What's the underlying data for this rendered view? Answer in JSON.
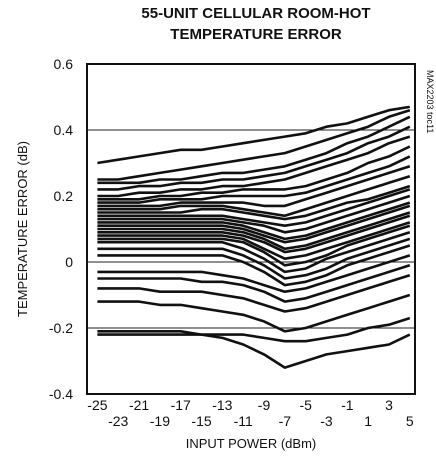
{
  "chart_data": {
    "type": "line",
    "title_line1": "55-UNIT CELLULAR ROOM-HOT",
    "title_line2": "TEMPERATURE ERROR",
    "xlabel": "INPUT POWER (dBm)",
    "ylabel": "TEMPERATURE ERROR (dB)",
    "part_label": "MAX2203 toc11",
    "xlim": [
      -26,
      5.5
    ],
    "ylim": [
      -0.4,
      0.6
    ],
    "y_ticks": [
      "0.6",
      "0.4",
      "0.2",
      "0",
      "-0.2",
      "-0.4"
    ],
    "y_tick_values": [
      0.6,
      0.4,
      0.2,
      0,
      -0.2,
      -0.4
    ],
    "x_ticks_upper": [
      "-25",
      "-21",
      "-17",
      "-13",
      "-9",
      "-5",
      "-1",
      "3"
    ],
    "x_ticks_upper_values": [
      -25,
      -21,
      -17,
      -13,
      -9,
      -5,
      -1,
      3
    ],
    "x_ticks_lower": [
      "-23",
      "-19",
      "-15",
      "-11",
      "-7",
      "-3",
      "1",
      "5"
    ],
    "x_ticks_lower_values": [
      -23,
      -19,
      -15,
      -11,
      -7,
      -3,
      1,
      5
    ],
    "gridlines_y": [
      0.4,
      0,
      -0.2
    ],
    "x": [
      -25,
      -23,
      -21,
      -19,
      -17,
      -15,
      -13,
      -11,
      -9,
      -7,
      -5,
      -3,
      -1,
      1,
      3,
      5
    ],
    "series": [
      {
        "values": [
          0.3,
          0.31,
          0.32,
          0.33,
          0.34,
          0.34,
          0.35,
          0.36,
          0.37,
          0.38,
          0.39,
          0.41,
          0.42,
          0.44,
          0.46,
          0.47
        ]
      },
      {
        "values": [
          0.25,
          0.25,
          0.26,
          0.27,
          0.28,
          0.29,
          0.3,
          0.31,
          0.32,
          0.33,
          0.35,
          0.37,
          0.39,
          0.41,
          0.44,
          0.46
        ]
      },
      {
        "values": [
          0.24,
          0.24,
          0.24,
          0.25,
          0.25,
          0.26,
          0.27,
          0.27,
          0.28,
          0.29,
          0.31,
          0.33,
          0.36,
          0.38,
          0.41,
          0.44
        ]
      },
      {
        "values": [
          0.22,
          0.22,
          0.23,
          0.23,
          0.24,
          0.24,
          0.25,
          0.25,
          0.26,
          0.27,
          0.29,
          0.31,
          0.33,
          0.36,
          0.38,
          0.41
        ]
      },
      {
        "values": [
          0.2,
          0.2,
          0.21,
          0.21,
          0.22,
          0.22,
          0.23,
          0.23,
          0.24,
          0.25,
          0.27,
          0.29,
          0.31,
          0.33,
          0.36,
          0.38
        ]
      },
      {
        "values": [
          0.19,
          0.19,
          0.19,
          0.2,
          0.2,
          0.21,
          0.21,
          0.22,
          0.22,
          0.22,
          0.23,
          0.25,
          0.27,
          0.3,
          0.32,
          0.35
        ]
      },
      {
        "values": [
          0.18,
          0.18,
          0.18,
          0.19,
          0.19,
          0.19,
          0.2,
          0.2,
          0.2,
          0.2,
          0.21,
          0.23,
          0.25,
          0.27,
          0.29,
          0.32
        ]
      },
      {
        "values": [
          0.17,
          0.17,
          0.17,
          0.17,
          0.18,
          0.18,
          0.18,
          0.18,
          0.17,
          0.17,
          0.19,
          0.21,
          0.23,
          0.25,
          0.27,
          0.29
        ]
      },
      {
        "values": [
          0.16,
          0.16,
          0.16,
          0.16,
          0.17,
          0.17,
          0.17,
          0.16,
          0.15,
          0.14,
          0.16,
          0.18,
          0.2,
          0.22,
          0.24,
          0.26
        ]
      },
      {
        "values": [
          0.15,
          0.15,
          0.15,
          0.15,
          0.15,
          0.16,
          0.16,
          0.15,
          0.14,
          0.13,
          0.14,
          0.16,
          0.18,
          0.19,
          0.21,
          0.23
        ]
      },
      {
        "values": [
          0.14,
          0.14,
          0.14,
          0.14,
          0.14,
          0.14,
          0.14,
          0.13,
          0.12,
          0.11,
          0.12,
          0.14,
          0.16,
          0.18,
          0.2,
          0.22
        ]
      },
      {
        "values": [
          0.13,
          0.13,
          0.13,
          0.13,
          0.13,
          0.13,
          0.13,
          0.12,
          0.11,
          0.09,
          0.1,
          0.12,
          0.14,
          0.16,
          0.18,
          0.2
        ]
      },
      {
        "values": [
          0.12,
          0.12,
          0.12,
          0.12,
          0.12,
          0.12,
          0.12,
          0.11,
          0.09,
          0.07,
          0.08,
          0.1,
          0.12,
          0.14,
          0.16,
          0.18
        ]
      },
      {
        "values": [
          0.11,
          0.11,
          0.11,
          0.11,
          0.11,
          0.11,
          0.11,
          0.1,
          0.08,
          0.06,
          0.07,
          0.09,
          0.11,
          0.13,
          0.15,
          0.17
        ]
      },
      {
        "values": [
          0.1,
          0.1,
          0.1,
          0.1,
          0.1,
          0.1,
          0.1,
          0.09,
          0.07,
          0.04,
          0.05,
          0.07,
          0.09,
          0.11,
          0.13,
          0.15
        ]
      },
      {
        "values": [
          0.09,
          0.09,
          0.09,
          0.09,
          0.09,
          0.09,
          0.09,
          0.08,
          0.06,
          0.03,
          0.04,
          0.06,
          0.08,
          0.1,
          0.12,
          0.14
        ]
      },
      {
        "values": [
          0.08,
          0.08,
          0.08,
          0.08,
          0.08,
          0.08,
          0.08,
          0.07,
          0.04,
          0.01,
          0.02,
          0.04,
          0.06,
          0.08,
          0.1,
          0.12
        ]
      },
      {
        "values": [
          0.07,
          0.07,
          0.07,
          0.07,
          0.07,
          0.07,
          0.07,
          0.06,
          0.03,
          -0.01,
          0.0,
          0.02,
          0.05,
          0.07,
          0.09,
          0.11
        ]
      },
      {
        "values": [
          0.06,
          0.06,
          0.06,
          0.06,
          0.06,
          0.06,
          0.06,
          0.04,
          0.01,
          -0.03,
          -0.02,
          0.01,
          0.03,
          0.05,
          0.07,
          0.09
        ]
      },
      {
        "values": [
          0.04,
          0.04,
          0.04,
          0.04,
          0.04,
          0.04,
          0.04,
          0.02,
          -0.01,
          -0.05,
          -0.04,
          -0.02,
          0.01,
          0.03,
          0.05,
          0.07
        ]
      },
      {
        "values": [
          0.02,
          0.02,
          0.02,
          0.02,
          0.02,
          0.02,
          0.02,
          0.0,
          -0.03,
          -0.07,
          -0.06,
          -0.04,
          -0.01,
          0.01,
          0.03,
          0.05
        ]
      },
      {
        "values": [
          -0.03,
          -0.03,
          -0.03,
          -0.03,
          -0.03,
          -0.03,
          -0.04,
          -0.05,
          -0.07,
          -0.09,
          -0.08,
          -0.06,
          -0.04,
          -0.02,
          0.0,
          0.02
        ]
      },
      {
        "values": [
          -0.05,
          -0.05,
          -0.05,
          -0.05,
          -0.05,
          -0.06,
          -0.06,
          -0.07,
          -0.09,
          -0.12,
          -0.11,
          -0.09,
          -0.07,
          -0.05,
          -0.03,
          -0.01
        ]
      },
      {
        "values": [
          -0.08,
          -0.08,
          -0.08,
          -0.09,
          -0.09,
          -0.09,
          -0.1,
          -0.11,
          -0.13,
          -0.15,
          -0.14,
          -0.12,
          -0.1,
          -0.08,
          -0.06,
          -0.04
        ]
      },
      {
        "values": [
          -0.12,
          -0.12,
          -0.12,
          -0.13,
          -0.13,
          -0.14,
          -0.15,
          -0.16,
          -0.18,
          -0.21,
          -0.2,
          -0.18,
          -0.16,
          -0.14,
          -0.12,
          -0.1
        ]
      },
      {
        "values": [
          -0.21,
          -0.21,
          -0.21,
          -0.21,
          -0.21,
          -0.22,
          -0.23,
          -0.25,
          -0.28,
          -0.32,
          -0.3,
          -0.28,
          -0.27,
          -0.26,
          -0.25,
          -0.22
        ]
      },
      {
        "values": [
          -0.22,
          -0.22,
          -0.22,
          -0.22,
          -0.22,
          -0.22,
          -0.22,
          -0.22,
          -0.23,
          -0.24,
          -0.24,
          -0.23,
          -0.22,
          -0.2,
          -0.19,
          -0.17
        ]
      }
    ],
    "grid": false,
    "legend": "none",
    "colors": {
      "line": "#111111",
      "gridline": "#222222",
      "axis": "#111111"
    }
  }
}
